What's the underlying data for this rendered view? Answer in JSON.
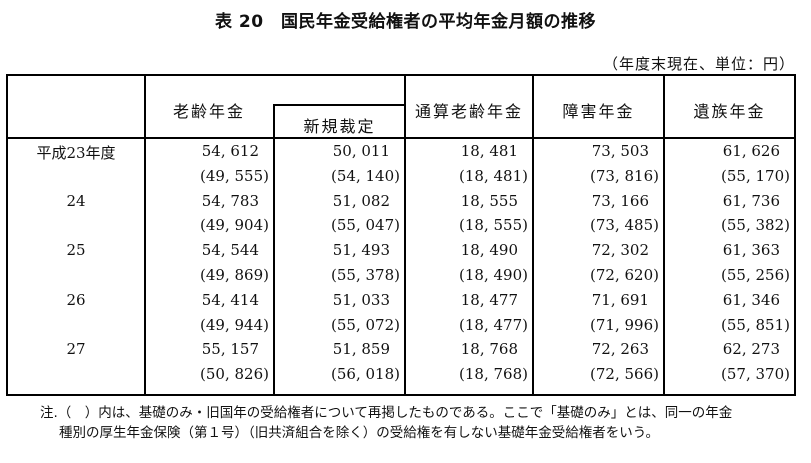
{
  "title": "表 20　国民年金受給権者の平均年金月額の推移",
  "unit_note": "（年度末現在、単位：円）",
  "table": {
    "headers": {
      "year": "",
      "old_age": "老齢年金",
      "old_age_new": "新規裁定",
      "tsusan": "通算老齢年金",
      "disability": "障害年金",
      "survivor": "遺族年金"
    },
    "rows": [
      {
        "year": "平成23年度",
        "main": [
          "54, 612",
          "50, 011",
          "18, 481",
          "73, 503",
          "61, 626"
        ],
        "sub": [
          "(49, 555)",
          "(54, 140)",
          "(18, 481)",
          "(73, 816)",
          "(55, 170)"
        ]
      },
      {
        "year": "24",
        "main": [
          "54, 783",
          "51, 082",
          "18, 555",
          "73, 166",
          "61, 736"
        ],
        "sub": [
          "(49, 904)",
          "(55, 047)",
          "(18, 555)",
          "(73, 485)",
          "(55, 382)"
        ]
      },
      {
        "year": "25",
        "main": [
          "54, 544",
          "51, 493",
          "18, 490",
          "72, 302",
          "61, 363"
        ],
        "sub": [
          "(49, 869)",
          "(55, 378)",
          "(18, 490)",
          "(72, 620)",
          "(55, 256)"
        ]
      },
      {
        "year": "26",
        "main": [
          "54, 414",
          "51, 033",
          "18, 477",
          "71, 691",
          "61, 346"
        ],
        "sub": [
          "(49, 944)",
          "(55, 072)",
          "(18, 477)",
          "(71, 996)",
          "(55, 851)"
        ]
      },
      {
        "year": "27",
        "main": [
          "55, 157",
          "51, 859",
          "18, 768",
          "72, 263",
          "62, 273"
        ],
        "sub": [
          "(50, 826)",
          "(56, 018)",
          "(18, 768)",
          "(72, 566)",
          "(57, 370)"
        ]
      }
    ]
  },
  "footnote": {
    "line1": "注.（　）内は、基礎のみ・旧国年の受給権者について再掲したものである。ここで「基礎のみ」とは、同一の年金",
    "line2": "種別の厚生年金保険（第１号）（旧共済組合を除く）の受給権を有しない基礎年金受給権者をいう。"
  }
}
